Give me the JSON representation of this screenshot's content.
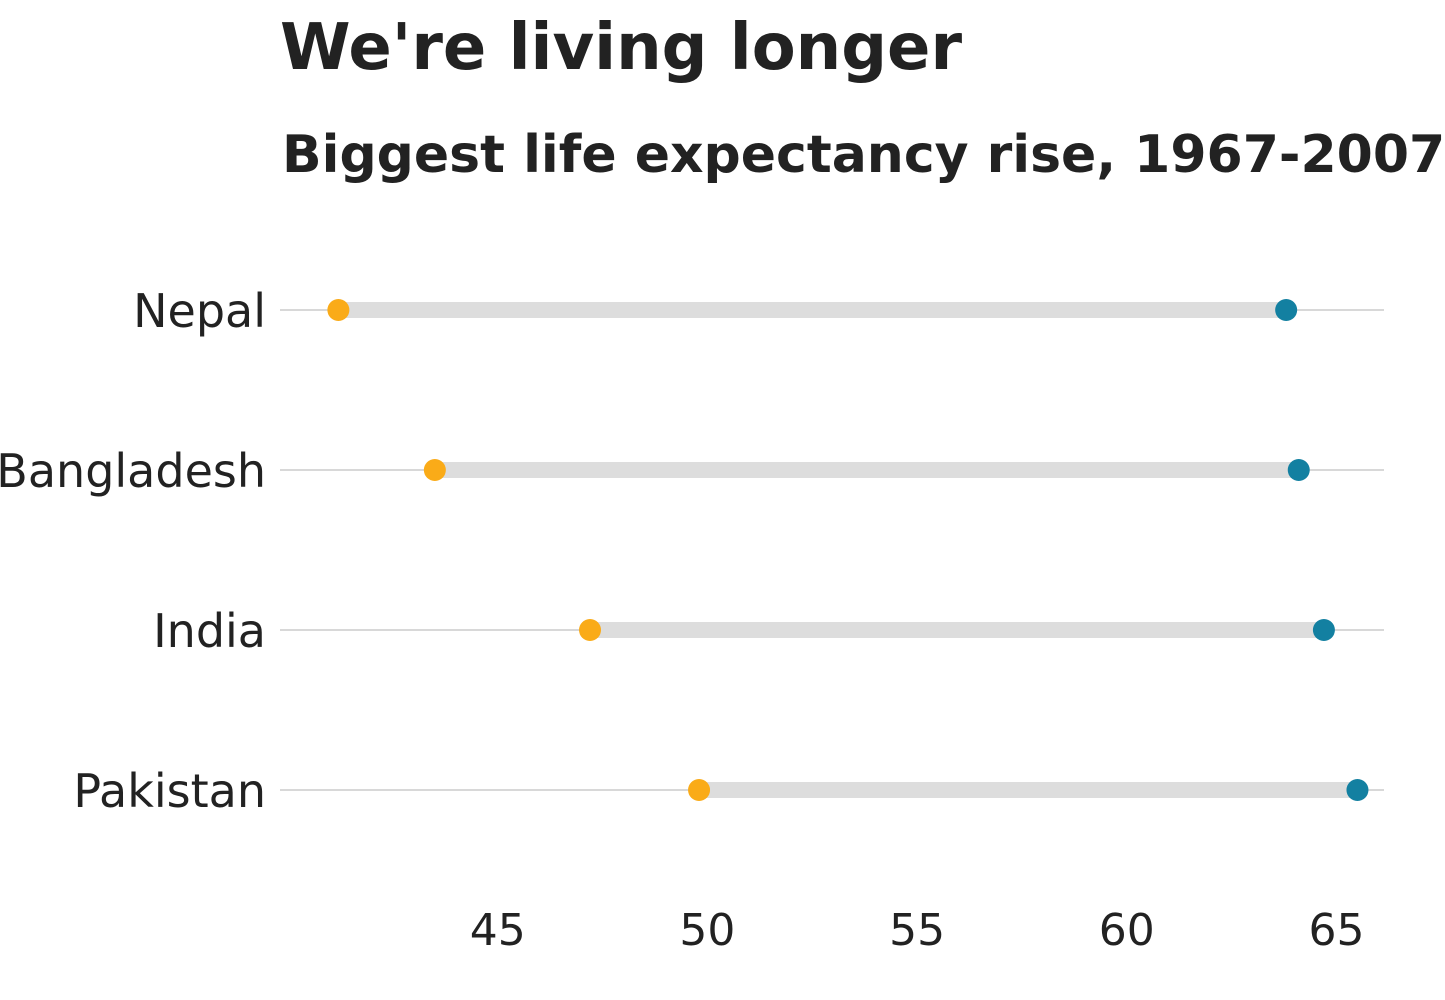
{
  "title": "We're living longer",
  "subtitle": "Biggest life expectancy rise, 1967-2007",
  "colors": {
    "start": "#FAAB18",
    "end": "#1380A1",
    "segment": "#dddddd",
    "gridline": "#cbcbcb",
    "text": "#222222"
  },
  "chart_data": {
    "type": "dumbbell",
    "categories": [
      "Nepal",
      "Bangladesh",
      "India",
      "Pakistan"
    ],
    "series": [
      {
        "values": [
          41.2,
          43.5,
          47.2,
          49.8
        ]
      },
      {
        "values": [
          63.8,
          64.1,
          64.7,
          65.5
        ]
      }
    ],
    "xlim": [
      40,
      66.2
    ],
    "xticks": [
      45,
      50,
      55,
      60,
      65
    ],
    "grid": "horizontal",
    "legend": "none"
  }
}
